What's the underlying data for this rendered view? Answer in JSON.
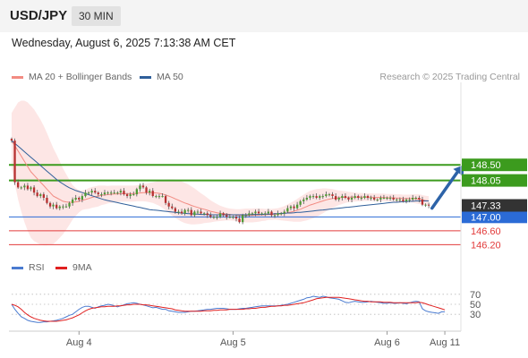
{
  "header": {
    "symbol": "USD/JPY",
    "timeframe": "30 MIN"
  },
  "datetime": "Wednesday, August 6, 2025 7:13:38 AM CET",
  "legend": {
    "items": [
      {
        "label": "MA 20 + Bollinger Bands",
        "color": "#f28b82"
      },
      {
        "label": "MA 50",
        "color": "#2f5f9a"
      }
    ],
    "credit": "Research © 2025 Trading Central"
  },
  "rsi_legend": {
    "items": [
      {
        "label": "RSI",
        "color": "#4a7bd0"
      },
      {
        "label": "9MA",
        "color": "#e02020"
      }
    ]
  },
  "chart_data": [
    {
      "type": "candlestick",
      "x_ticks": [
        "Aug 4",
        "Aug 5",
        "Aug 6",
        "Aug 11"
      ],
      "x_tick_bar": [
        21,
        69,
        117,
        135
      ],
      "x_range": [
        0,
        140
      ],
      "ylim": [
        145.95,
        149.95
      ],
      "current_price": {
        "label": "147.33",
        "value": 147.33,
        "color": "#333333"
      },
      "levels": [
        {
          "label": "148.50",
          "value": 148.5,
          "kind": "resistance",
          "color": "#3c9b1e"
        },
        {
          "label": "148.05",
          "value": 148.05,
          "kind": "resistance",
          "color": "#3c9b1e"
        },
        {
          "label": "147.00",
          "value": 147.0,
          "kind": "pivot",
          "color": "#2b6bd6"
        },
        {
          "label": "146.60",
          "value": 146.6,
          "kind": "support",
          "color": "#e23b3b"
        },
        {
          "label": "146.20",
          "value": 146.2,
          "kind": "support",
          "color": "#e23b3b"
        }
      ],
      "arrow": {
        "from": [
          131,
          147.25
        ],
        "to": [
          141,
          148.5
        ],
        "color": "#2d63a8"
      },
      "closes": [
        149.2,
        148.0,
        147.85,
        147.85,
        147.9,
        147.8,
        147.85,
        147.7,
        147.6,
        147.65,
        147.55,
        147.4,
        147.3,
        147.35,
        147.25,
        147.3,
        147.3,
        147.3,
        147.4,
        147.5,
        147.55,
        147.5,
        147.6,
        147.7,
        147.7,
        147.75,
        147.7,
        147.65,
        147.65,
        147.7,
        147.7,
        147.7,
        147.7,
        147.7,
        147.75,
        147.65,
        147.6,
        147.65,
        147.65,
        147.8,
        147.9,
        147.85,
        147.7,
        147.75,
        147.6,
        147.6,
        147.6,
        147.6,
        147.4,
        147.3,
        147.25,
        147.15,
        147.15,
        147.1,
        147.2,
        147.2,
        147.05,
        147.15,
        147.15,
        147.1,
        147.1,
        147.05,
        147.0,
        147.0,
        147.0,
        147.1,
        147.05,
        147.0,
        147.0,
        147.0,
        146.95,
        146.85,
        147.05,
        147.05,
        147.1,
        147.1,
        147.15,
        147.1,
        147.1,
        147.1,
        147.15,
        147.05,
        147.05,
        147.1,
        147.1,
        147.15,
        147.25,
        147.3,
        147.25,
        147.35,
        147.45,
        147.5,
        147.55,
        147.6,
        147.6,
        147.55,
        147.6,
        147.6,
        147.65,
        147.65,
        147.6,
        147.5,
        147.55,
        147.6,
        147.55,
        147.5,
        147.55,
        147.6,
        147.55,
        147.55,
        147.6,
        147.55,
        147.55,
        147.5,
        147.5,
        147.55,
        147.55,
        147.55,
        147.55,
        147.5,
        147.5,
        147.5,
        147.45,
        147.5,
        147.5,
        147.55,
        147.55,
        147.5,
        147.35,
        147.35,
        147.33
      ],
      "ma20": [
        149.2,
        149.05,
        148.9,
        148.75,
        148.6,
        148.45,
        148.3,
        148.2,
        148.1,
        148.0,
        147.9,
        147.8,
        147.7,
        147.6,
        147.55,
        147.5,
        147.45,
        147.43,
        147.42,
        147.42,
        147.43,
        147.45,
        147.48,
        147.5,
        147.53,
        147.56,
        147.58,
        147.6,
        147.62,
        147.63,
        147.64,
        147.65,
        147.66,
        147.66,
        147.67,
        147.67,
        147.67,
        147.67,
        147.67,
        147.68,
        147.69,
        147.7,
        147.7,
        147.7,
        147.7,
        147.69,
        147.68,
        147.66,
        147.63,
        147.6,
        147.56,
        147.52,
        147.48,
        147.44,
        147.4,
        147.37,
        147.33,
        147.3,
        147.27,
        147.24,
        147.22,
        147.19,
        147.16,
        147.14,
        147.12,
        147.1,
        147.09,
        147.08,
        147.07,
        147.06,
        147.05,
        147.04,
        147.04,
        147.04,
        147.04,
        147.04,
        147.05,
        147.05,
        147.06,
        147.06,
        147.07,
        147.07,
        147.08,
        147.08,
        147.09,
        147.1,
        147.12,
        147.14,
        147.16,
        147.19,
        147.22,
        147.26,
        147.3,
        147.34,
        147.37,
        147.4,
        147.43,
        147.46,
        147.49,
        147.51,
        147.53,
        147.54,
        147.55,
        147.56,
        147.57,
        147.57,
        147.57,
        147.57,
        147.57,
        147.57,
        147.57,
        147.57,
        147.57,
        147.56,
        147.56,
        147.56,
        147.56,
        147.55,
        147.55,
        147.55,
        147.54,
        147.54,
        147.53,
        147.53,
        147.53,
        147.53,
        147.52,
        147.51,
        147.49,
        147.47,
        147.46
      ],
      "band_width": [
        0.8,
        1.1,
        1.4,
        1.6,
        1.75,
        1.85,
        1.9,
        1.9,
        1.85,
        1.8,
        1.72,
        1.62,
        1.5,
        1.38,
        1.25,
        1.1,
        0.95,
        0.8,
        0.65,
        0.5,
        0.4,
        0.32,
        0.28,
        0.28,
        0.3,
        0.3,
        0.3,
        0.3,
        0.28,
        0.27,
        0.25,
        0.25,
        0.24,
        0.24,
        0.23,
        0.23,
        0.23,
        0.23,
        0.23,
        0.23,
        0.24,
        0.25,
        0.26,
        0.28,
        0.3,
        0.33,
        0.36,
        0.4,
        0.44,
        0.48,
        0.52,
        0.55,
        0.57,
        0.58,
        0.58,
        0.57,
        0.55,
        0.52,
        0.48,
        0.44,
        0.4,
        0.36,
        0.32,
        0.28,
        0.25,
        0.22,
        0.2,
        0.18,
        0.17,
        0.17,
        0.17,
        0.18,
        0.19,
        0.2,
        0.2,
        0.2,
        0.2,
        0.19,
        0.18,
        0.17,
        0.16,
        0.16,
        0.16,
        0.17,
        0.19,
        0.21,
        0.24,
        0.27,
        0.3,
        0.33,
        0.36,
        0.38,
        0.4,
        0.41,
        0.41,
        0.4,
        0.38,
        0.36,
        0.33,
        0.3,
        0.27,
        0.24,
        0.21,
        0.19,
        0.17,
        0.15,
        0.14,
        0.13,
        0.12,
        0.12,
        0.11,
        0.11,
        0.11,
        0.11,
        0.11,
        0.11,
        0.11,
        0.11,
        0.11,
        0.11,
        0.11,
        0.11,
        0.11,
        0.11,
        0.11,
        0.12,
        0.13,
        0.14,
        0.14,
        0.14,
        0.14
      ],
      "ma50": [
        149.2,
        149.12,
        149.04,
        148.96,
        148.88,
        148.8,
        148.72,
        148.64,
        148.56,
        148.48,
        148.4,
        148.32,
        148.24,
        148.16,
        148.08,
        148.01,
        147.95,
        147.89,
        147.84,
        147.8,
        147.76,
        147.73,
        147.7,
        147.67,
        147.64,
        147.61,
        147.58,
        147.55,
        147.52,
        147.49,
        147.47,
        147.45,
        147.43,
        147.41,
        147.39,
        147.37,
        147.35,
        147.33,
        147.31,
        147.29,
        147.27,
        147.25,
        147.23,
        147.21,
        147.2,
        147.19,
        147.18,
        147.17,
        147.16,
        147.15,
        147.14,
        147.13,
        147.12,
        147.11,
        147.1,
        147.09,
        147.09,
        147.08,
        147.08,
        147.07,
        147.07,
        147.07,
        147.06,
        147.06,
        147.06,
        147.06,
        147.06,
        147.06,
        147.06,
        147.06,
        147.06,
        147.06,
        147.06,
        147.06,
        147.06,
        147.07,
        147.07,
        147.07,
        147.07,
        147.08,
        147.08,
        147.08,
        147.09,
        147.09,
        147.1,
        147.1,
        147.11,
        147.11,
        147.12,
        147.13,
        147.13,
        147.14,
        147.15,
        147.16,
        147.17,
        147.18,
        147.19,
        147.2,
        147.21,
        147.22,
        147.23,
        147.24,
        147.25,
        147.26,
        147.27,
        147.28,
        147.29,
        147.3,
        147.31,
        147.32,
        147.33,
        147.34,
        147.35,
        147.36,
        147.37,
        147.38,
        147.39,
        147.4,
        147.41,
        147.42,
        147.42,
        147.43,
        147.44,
        147.44,
        147.45,
        147.45,
        147.46,
        147.46,
        147.46,
        147.46,
        147.46
      ]
    },
    {
      "type": "line",
      "name": "RSI",
      "y_ticks": [
        70,
        50,
        30
      ],
      "ylim": [
        0,
        100
      ],
      "rsi": [
        50,
        40,
        32,
        25,
        22,
        18,
        16,
        15,
        14,
        14,
        15,
        15,
        16,
        17,
        18,
        20,
        22,
        25,
        28,
        30,
        35,
        40,
        44,
        46,
        46,
        44,
        42,
        45,
        47,
        48,
        50,
        49,
        47,
        45,
        47,
        49,
        51,
        52,
        53,
        52,
        50,
        49,
        47,
        45,
        43,
        44,
        42,
        40,
        40,
        37,
        36,
        35,
        34,
        34,
        34,
        35,
        36,
        36,
        37,
        38,
        39,
        40,
        40,
        41,
        42,
        42,
        42,
        41,
        40,
        40,
        40,
        41,
        42,
        42,
        43,
        44,
        45,
        46,
        47,
        47,
        47,
        47,
        47,
        47,
        48,
        49,
        50,
        52,
        54,
        56,
        58,
        60,
        63,
        64,
        66,
        65,
        64,
        66,
        65,
        63,
        62,
        61,
        60,
        57,
        54,
        53,
        55,
        56,
        55,
        54,
        54,
        55,
        56,
        55,
        54,
        53,
        52,
        52,
        53,
        52,
        52,
        53,
        52,
        51,
        53,
        55,
        56,
        55,
        41,
        37,
        35,
        34,
        33,
        32,
        35,
        35
      ],
      "ma9": [
        50,
        48,
        45,
        40,
        34,
        29,
        25,
        22,
        20,
        18,
        17,
        16,
        16,
        16,
        16,
        17,
        18,
        19,
        21,
        23,
        26,
        29,
        33,
        37,
        40,
        42,
        43,
        44,
        45,
        45,
        46,
        46,
        46,
        47,
        47,
        48,
        49,
        49,
        50,
        50,
        50,
        49,
        49,
        48,
        47,
        46,
        45,
        44,
        43,
        42,
        41,
        39,
        38,
        37,
        36,
        36,
        36,
        36,
        36,
        36,
        37,
        37,
        37,
        38,
        38,
        39,
        39,
        39,
        40,
        40,
        40,
        40,
        40,
        41,
        41,
        42,
        42,
        43,
        44,
        44,
        45,
        46,
        46,
        47,
        47,
        48,
        48,
        49,
        50,
        51,
        52,
        53,
        55,
        57,
        59,
        61,
        62,
        63,
        64,
        64,
        64,
        64,
        64,
        63,
        62,
        61,
        60,
        59,
        58,
        57,
        56,
        56,
        55,
        55,
        55,
        55,
        54,
        54,
        54,
        53,
        53,
        53,
        53,
        53,
        53,
        53,
        53,
        54,
        53,
        51,
        49,
        47,
        45,
        43,
        41,
        39
      ]
    }
  ]
}
